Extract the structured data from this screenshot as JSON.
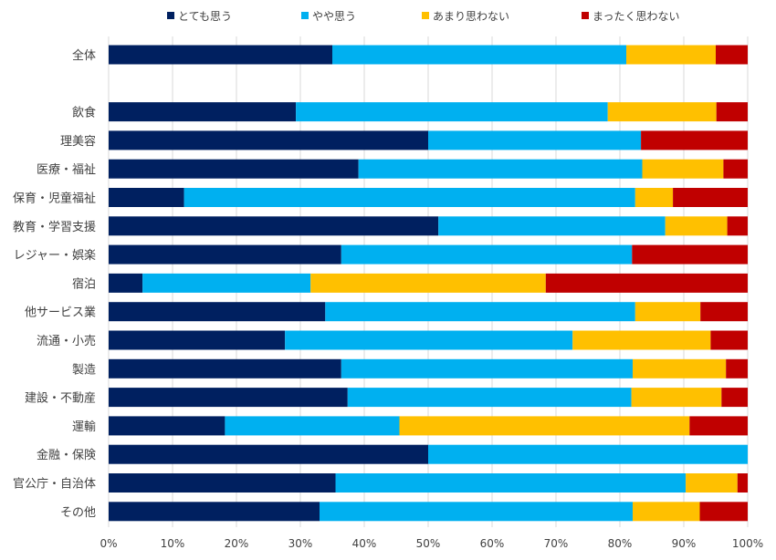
{
  "chart_data": {
    "type": "bar",
    "orientation": "horizontal",
    "stacked": "percent",
    "title": "",
    "xlabel": "",
    "ylabel": "",
    "xlim": [
      0,
      100
    ],
    "x_ticks": [
      "0%",
      "10%",
      "20%",
      "30%",
      "40%",
      "50%",
      "60%",
      "70%",
      "80%",
      "90%",
      "100%"
    ],
    "legend_position": "top",
    "categories": [
      "全体",
      "",
      "飲食",
      "理美容",
      "医療・福祉",
      "保育・児童福祉",
      "教育・学習支援",
      "レジャー・娯楽",
      "宿泊",
      "他サービス業",
      "流通・小売",
      "製造",
      "建設・不動産",
      "運輸",
      "金融・保険",
      "官公庁・自治体",
      "その他"
    ],
    "series": [
      {
        "name": "とても思う",
        "color": "#002060",
        "values": [
          35,
          null,
          29.3,
          50,
          39.1,
          11.8,
          51.6,
          36.4,
          5.3,
          33.9,
          27.6,
          36.4,
          37.4,
          18.2,
          50,
          35.5,
          33
        ]
      },
      {
        "name": "やや思う",
        "color": "#00b0f0",
        "values": [
          46,
          null,
          48.8,
          33.3,
          44.4,
          70.6,
          35.5,
          45.5,
          26.3,
          48.5,
          45,
          45.6,
          44.4,
          27.3,
          50,
          54.8,
          49
        ]
      },
      {
        "name": "あまり思わない",
        "color": "#ffc000",
        "values": [
          14,
          null,
          17,
          0,
          12.7,
          5.9,
          9.7,
          0,
          36.8,
          10.2,
          21.6,
          14.6,
          14.1,
          45.4,
          0,
          8.1,
          10.5
        ]
      },
      {
        "name": "まったく思わない",
        "color": "#c00000",
        "values": [
          5,
          null,
          4.9,
          16.7,
          3.8,
          11.7,
          3.2,
          18.1,
          31.6,
          7.4,
          5.8,
          3.4,
          4.1,
          9.1,
          0,
          1.6,
          7.5
        ]
      }
    ]
  }
}
